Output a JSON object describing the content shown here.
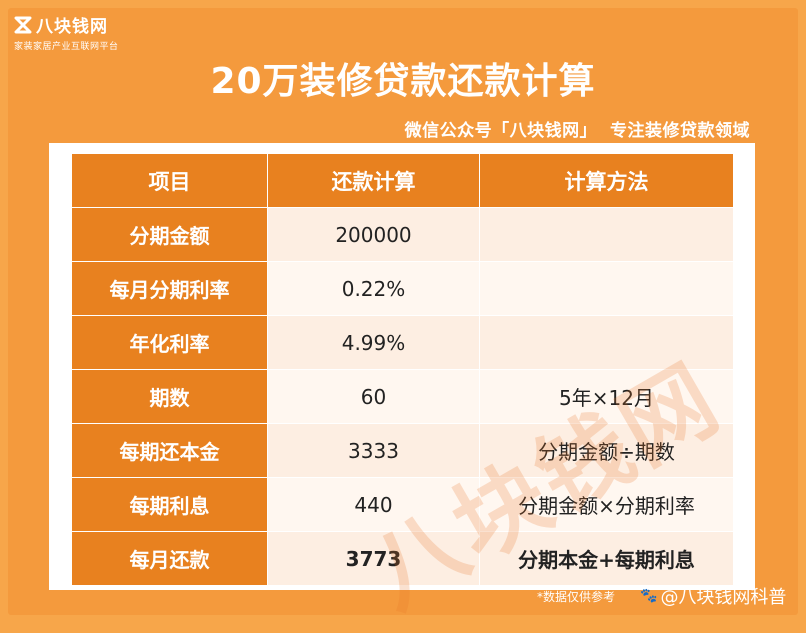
{
  "logo": {
    "name": "八块钱网",
    "tagline": "家装家居产业互联网平台"
  },
  "title": "20万装修贷款还款计算",
  "subtitle": "微信公众号「八块钱网」  专注装修贷款领域",
  "table": {
    "headers": [
      "项目",
      "还款计算",
      "计算方法"
    ],
    "rows": [
      {
        "item": "分期金额",
        "calc": "200000",
        "method": ""
      },
      {
        "item": "每月分期利率",
        "calc": "0.22%",
        "method": ""
      },
      {
        "item": "年化利率",
        "calc": "4.99%",
        "method": ""
      },
      {
        "item": "期数",
        "calc": "60",
        "method": "5年×12月"
      },
      {
        "item": "每期还本金",
        "calc": "3333",
        "method": "分期金额÷期数"
      },
      {
        "item": "每期利息",
        "calc": "440",
        "method": "分期金额×分期利率"
      },
      {
        "item": "每月还款",
        "calc": "3773",
        "method": "分期本金+每期利息"
      }
    ]
  },
  "watermark": "八块钱网",
  "footnote": "*数据仅供参考",
  "brand_tag": "@八块钱网科普",
  "colors": {
    "background": "#f7a64a",
    "header": "#e8811f",
    "highlight": "#c0121b"
  }
}
